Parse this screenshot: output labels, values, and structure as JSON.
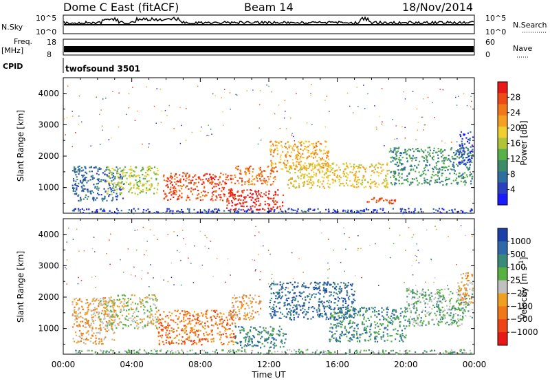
{
  "header": {
    "station": "Dome C East (fitACF)",
    "beam": "Beam 14",
    "date": "18/Nov/2014"
  },
  "strips": {
    "nsky_label": "N.Sky",
    "nsky_ticks": [
      "10^5",
      "10^0"
    ],
    "nsearch_label": "N.Search",
    "nsearch_ticks": [
      "10^5",
      "10^0"
    ],
    "freq_label_1": "Freq.",
    "freq_label_2": "[MHz]",
    "freq_ticks": [
      "18",
      "8"
    ],
    "nave_label": "Nave",
    "nave_ticks": [
      "60",
      "0"
    ],
    "cpid_label": "CPID",
    "cpid_value": "twofsound 3501"
  },
  "chart_data": [
    {
      "type": "heatmap",
      "ylabel": "Slant Range [km]",
      "xlabel": "Time UT",
      "x_tick_labels": [
        "00:00",
        "04:00",
        "08:00",
        "12:00",
        "16:00",
        "20:00",
        "00:00"
      ],
      "xlim_hours": [
        0,
        24
      ],
      "y_tick_labels": [
        "1000",
        "2000",
        "3000",
        "4000"
      ],
      "ylim_km": [
        180,
        4500
      ],
      "colorbar": {
        "label": "Power [dB]",
        "tick_labels": [
          "4",
          "8",
          "12",
          "16",
          "20",
          "24",
          "28"
        ],
        "colors": [
          "#1a1aff",
          "#2b3fbf",
          "#2f6f9f",
          "#3d8a6a",
          "#57b04a",
          "#b0c43a",
          "#f0d030",
          "#f5a020",
          "#f07818",
          "#ee4a18",
          "#e81818"
        ]
      },
      "regions": [
        {
          "t0": 0.4,
          "t1": 24,
          "r0": 200,
          "r1": 350,
          "level": 1
        },
        {
          "t0": 0.5,
          "t1": 3.5,
          "r0": 600,
          "r1": 1700,
          "level": 2
        },
        {
          "t0": 2.5,
          "t1": 5.5,
          "r0": 800,
          "r1": 1700,
          "level": 5
        },
        {
          "t0": 5.8,
          "t1": 10,
          "r0": 600,
          "r1": 1500,
          "level": 9
        },
        {
          "t0": 9.5,
          "t1": 12.8,
          "r0": 300,
          "r1": 950,
          "level": 10
        },
        {
          "t0": 10,
          "t1": 12.5,
          "r0": 1100,
          "r1": 1700,
          "level": 8
        },
        {
          "t0": 12,
          "t1": 15.5,
          "r0": 1600,
          "r1": 2500,
          "level": 7
        },
        {
          "t0": 13,
          "t1": 19,
          "r0": 1000,
          "r1": 1800,
          "level": 6
        },
        {
          "t0": 17.5,
          "t1": 19.5,
          "r0": 500,
          "r1": 700,
          "level": 9
        },
        {
          "t0": 19,
          "t1": 24,
          "r0": 1100,
          "r1": 2300,
          "level": 3
        },
        {
          "t0": 23,
          "t1": 24,
          "r0": 1700,
          "r1": 2800,
          "level": 1
        }
      ]
    },
    {
      "type": "heatmap",
      "ylabel": "Slant Range [km]",
      "xlabel": "Time UT",
      "x_tick_labels": [
        "00:00",
        "04:00",
        "08:00",
        "12:00",
        "16:00",
        "20:00",
        "00:00"
      ],
      "xlim_hours": [
        0,
        24
      ],
      "y_tick_labels": [
        "1000",
        "2000",
        "3000",
        "4000"
      ],
      "ylim_km": [
        180,
        4500
      ],
      "colorbar": {
        "label": "Velocity [m s",
        "label_sup": "-1",
        "label_end": "]",
        "tick_labels": [
          "1000",
          "500",
          "100",
          "25",
          "−25",
          "−100",
          "−500",
          "−1000"
        ],
        "colors": [
          "#1c3ea8",
          "#2f68a8",
          "#3a8a7a",
          "#58b040",
          "#c0c0c0",
          "#f0a020",
          "#f07818",
          "#ee4418",
          "#e81818"
        ]
      },
      "regions": [
        {
          "t0": 0.4,
          "t1": 24,
          "r0": 200,
          "r1": 350,
          "level": 3
        },
        {
          "t0": 0.5,
          "t1": 3,
          "r0": 500,
          "r1": 2000,
          "level": 5
        },
        {
          "t0": 2,
          "t1": 5.5,
          "r0": 1000,
          "r1": 2100,
          "level": 4
        },
        {
          "t0": 5.5,
          "t1": 10,
          "r0": 500,
          "r1": 1600,
          "level": 6
        },
        {
          "t0": 9.8,
          "t1": 11.5,
          "r0": 1300,
          "r1": 2100,
          "level": 5
        },
        {
          "t0": 10,
          "t1": 13,
          "r0": 400,
          "r1": 1100,
          "level": 2
        },
        {
          "t0": 12,
          "t1": 17,
          "r0": 1300,
          "r1": 2500,
          "level": 1
        },
        {
          "t0": 15.5,
          "t1": 20,
          "r0": 600,
          "r1": 1700,
          "level": 2
        },
        {
          "t0": 20,
          "t1": 24,
          "r0": 1100,
          "r1": 2300,
          "level": 3
        },
        {
          "t0": 23,
          "t1": 24,
          "r0": 1800,
          "r1": 2800,
          "level": 5
        }
      ]
    }
  ]
}
